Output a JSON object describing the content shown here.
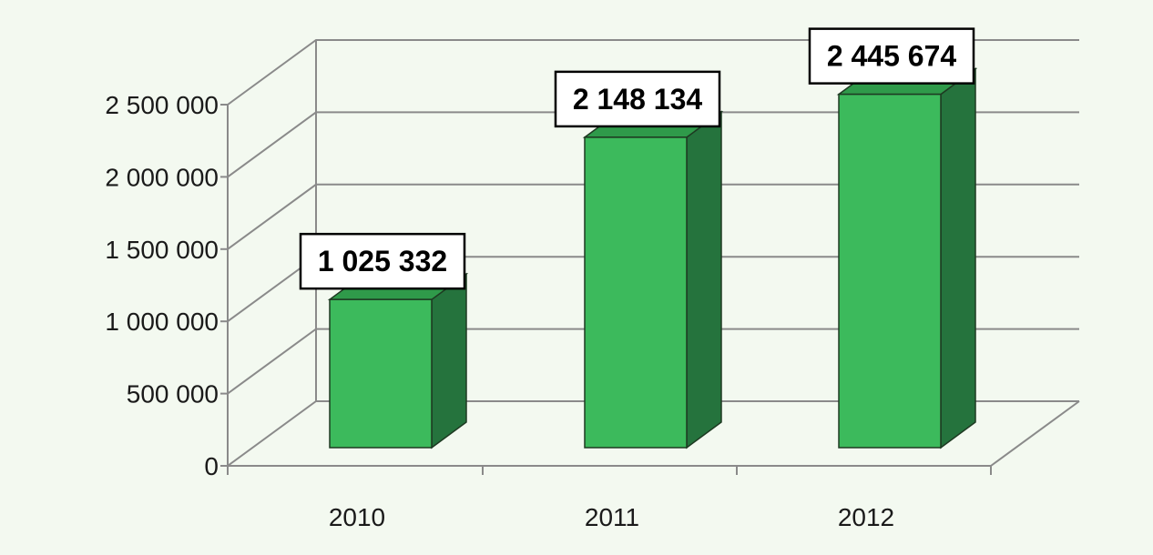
{
  "chart_data": {
    "type": "bar",
    "categories": [
      "2010",
      "2011",
      "2012"
    ],
    "values": [
      1025332,
      2148134,
      2445674
    ],
    "data_labels": [
      "1 025 332",
      "2 148 134",
      "2 445 674"
    ],
    "yticks": [
      0,
      500000,
      1000000,
      1500000,
      2000000,
      2500000
    ],
    "ytick_labels": [
      "0",
      "500 000",
      "1 000 000",
      "1 500 000",
      "2 000 000",
      "2 500 000"
    ],
    "ylim": [
      0,
      2500000
    ],
    "grid": true,
    "style": "3d-column",
    "colors": {
      "front": "#3cba5c",
      "side": "#25733d",
      "top": "#2f9a4a",
      "grid": "#8a8a8a",
      "background": "#f3f9f0"
    }
  }
}
